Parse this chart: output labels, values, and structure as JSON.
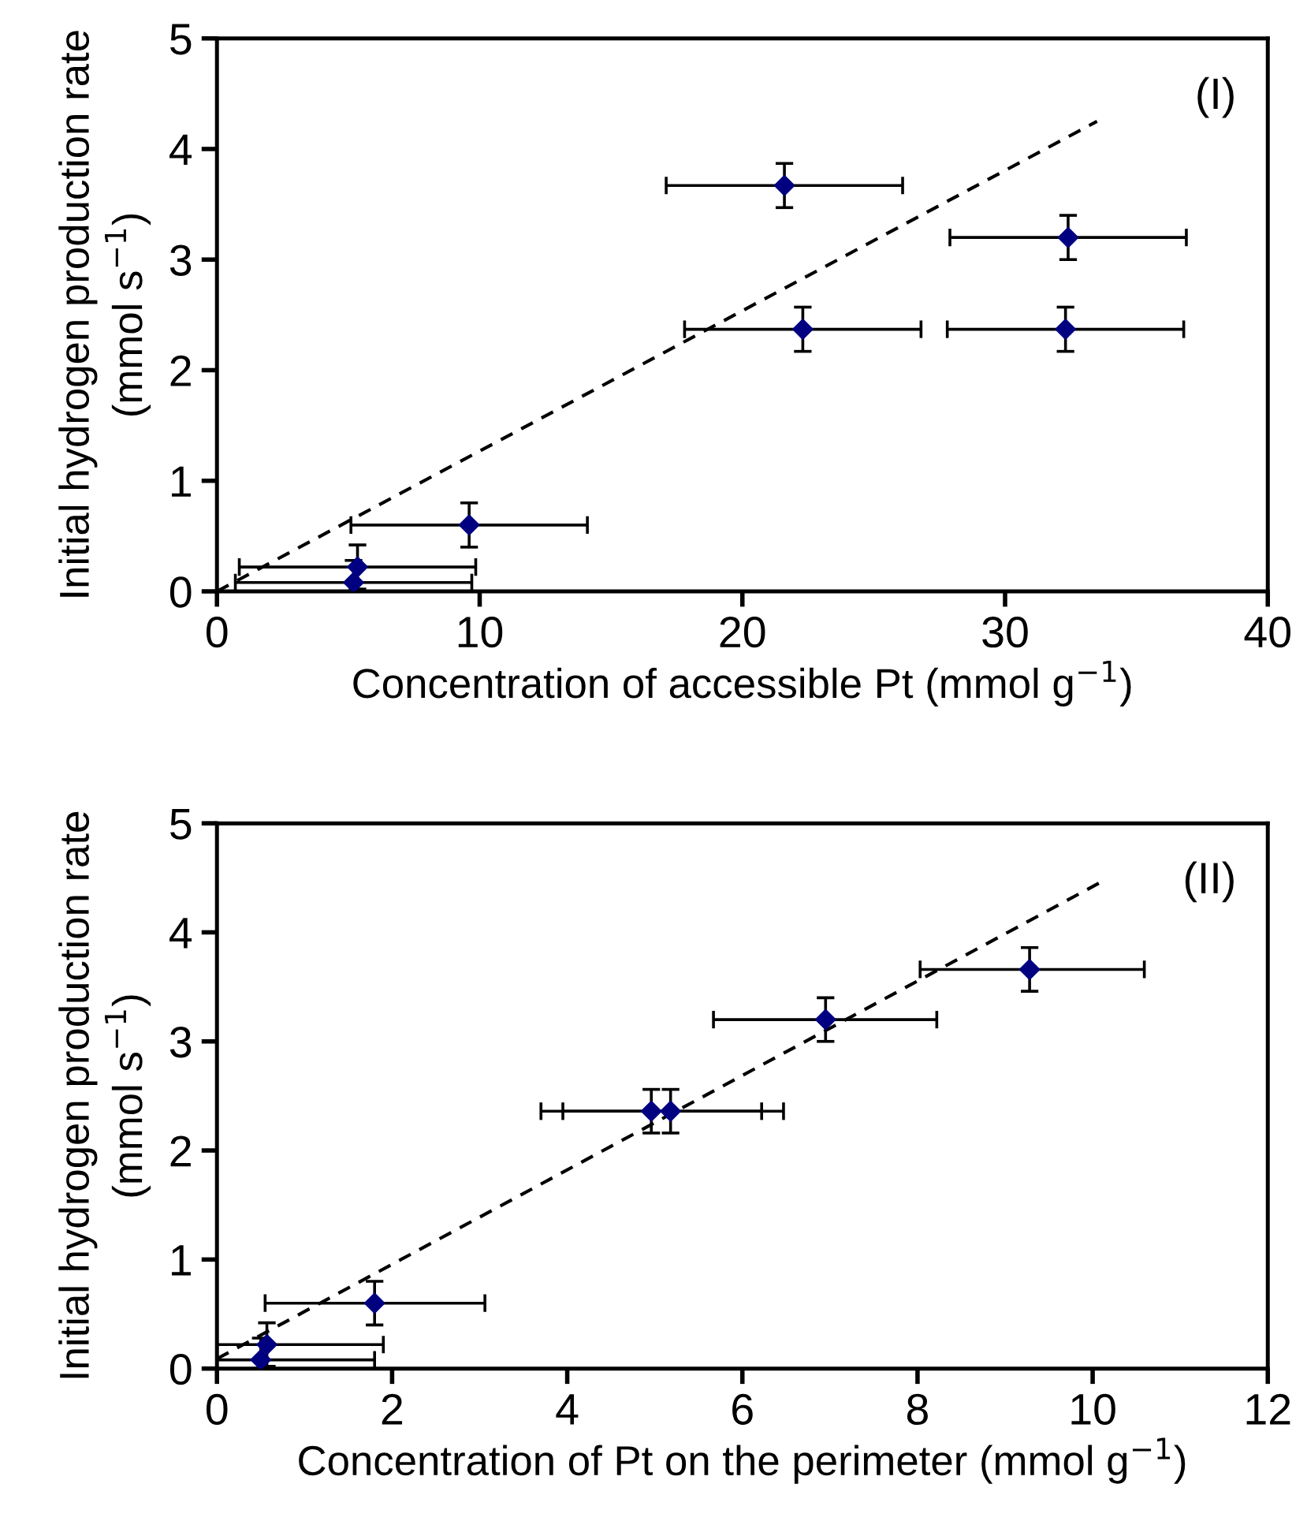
{
  "chart_data": [
    {
      "type": "scatter",
      "xlabel": "Concentration of accessible Pt (mmol g$^{−1}$)",
      "ylabel": "Initial hydrogen production rate\n(mmol s$^{−1}$)",
      "annotations": [
        "(I)"
      ],
      "xlim": [
        0,
        40
      ],
      "xticks": [
        0,
        10,
        20,
        30,
        40
      ],
      "ylim": [
        0,
        5
      ],
      "yticks": [
        0,
        1,
        2,
        3,
        4,
        5
      ],
      "grid": false,
      "legend": false,
      "series": [
        {
          "color": "#000080",
          "marker": "diamond",
          "x": [
            5.2,
            5.35,
            9.6,
            21.6,
            22.3,
            32.3,
            32.4
          ],
          "values": [
            0.08,
            0.22,
            0.6,
            3.67,
            2.37,
            2.37,
            3.2
          ],
          "errors": [
            [
              0,
              0.28
            ],
            0.2,
            0.2,
            0.2,
            0.2,
            0.2,
            0.2
          ],
          "xerrors": [
            4.5,
            4.5,
            4.5,
            4.5,
            4.5,
            4.5,
            4.5
          ]
        },
        {
          "type": "line",
          "color": "#000000",
          "line_style": "dashed",
          "x": [
            0,
            33.5
          ],
          "values": [
            0,
            4.25
          ]
        }
      ]
    },
    {
      "type": "scatter",
      "xlabel": "Concentration of Pt on the perimeter (mmol g$^{−1}$)",
      "ylabel": "Initial hydrogen production rate\n(mmol s$^{−1}$)",
      "annotations": [
        "(II)"
      ],
      "xlim": [
        0,
        12
      ],
      "xticks": [
        0,
        2,
        4,
        6,
        8,
        10,
        12
      ],
      "ylim": [
        0,
        5
      ],
      "yticks": [
        0,
        1,
        2,
        3,
        4,
        5
      ],
      "grid": false,
      "legend": false,
      "series": [
        {
          "color": "#000080",
          "marker": "diamond",
          "x": [
            0.5,
            0.57,
            1.8,
            4.96,
            5.18,
            6.95,
            9.28
          ],
          "values": [
            0.08,
            0.22,
            0.6,
            2.36,
            2.36,
            3.2,
            3.66
          ],
          "errors": [
            [
              0,
              0.28
            ],
            0.2,
            0.2,
            0.2,
            0.2,
            0.2,
            0.2
          ],
          "xerrors": [
            [
              0,
              1.8
            ],
            [
              0,
              1.9
            ],
            [
              0.55,
              3.06
            ],
            [
              3.7,
              6.22
            ],
            [
              3.95,
              6.47
            ],
            [
              5.67,
              8.22
            ],
            [
              8.03,
              10.59
            ]
          ]
        },
        {
          "type": "line",
          "color": "#000000",
          "line_style": "dashed",
          "x": [
            0,
            10.07
          ],
          "values": [
            0.09,
            4.45
          ]
        }
      ]
    }
  ]
}
